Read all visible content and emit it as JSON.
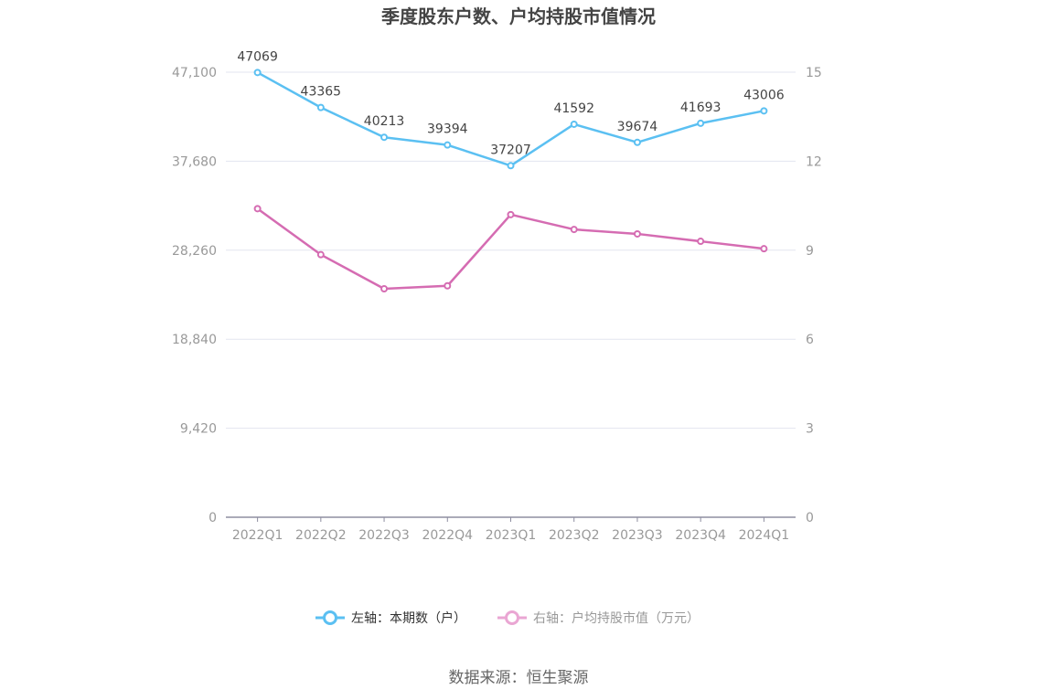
{
  "chart_data": {
    "type": "line",
    "title": "季度股东户数、户均持股市值情况",
    "categories": [
      "2022Q1",
      "2022Q2",
      "2022Q3",
      "2022Q4",
      "2023Q1",
      "2023Q2",
      "2023Q3",
      "2023Q4",
      "2024Q1"
    ],
    "left_axis": {
      "ticks": [
        "0",
        "9,420",
        "18,840",
        "28,260",
        "37,680",
        "47,100"
      ],
      "ylim": [
        0,
        47100
      ]
    },
    "right_axis": {
      "ticks": [
        "0",
        "3",
        "6",
        "9",
        "12",
        "15"
      ],
      "ylim": [
        0,
        15
      ]
    },
    "series": [
      {
        "name": "左轴：本期数（户）",
        "axis": "left",
        "color": "#5bc0f2",
        "values": [
          47069,
          43365,
          40213,
          39394,
          37207,
          41592,
          39674,
          41693,
          43006
        ],
        "labels": [
          "47069",
          "43365",
          "40213",
          "39394",
          "37207",
          "41592",
          "39674",
          "41693",
          "43006"
        ]
      },
      {
        "name": "右轴：户均持股市值（万元）",
        "axis": "right",
        "color": "#d56cb2",
        "values": [
          10.4,
          8.85,
          7.7,
          7.8,
          10.2,
          9.7,
          9.55,
          9.3,
          9.05
        ]
      }
    ],
    "grid": true,
    "legend_position": "bottom"
  },
  "source": "数据来源：恒生聚源"
}
